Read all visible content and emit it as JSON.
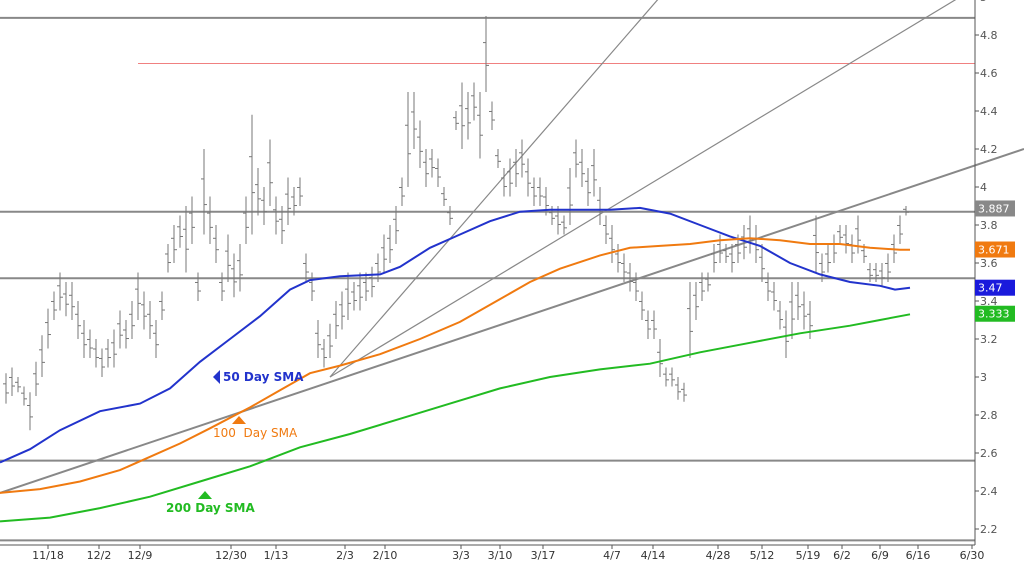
{
  "chart_data": {
    "type": "line",
    "title": "",
    "ylim": [
      2.1,
      5.0
    ],
    "y_ticks": [
      "2.2",
      "2.4",
      "2.6",
      "2.8",
      "3",
      "3.2",
      "3.4",
      "3.6",
      "3.8",
      "4",
      "4.2",
      "4.4",
      "4.6",
      "4.8",
      "5"
    ],
    "x_ticks": [
      "11/18",
      "12/2",
      "12/9",
      "12/30",
      "1/13",
      "2/3",
      "2/10",
      "3/3",
      "3/10",
      "3/17",
      "4/7",
      "4/14",
      "4/28",
      "5/12",
      "5/19",
      "6/2",
      "6/9",
      "6/16",
      "6/30"
    ],
    "grid": false,
    "horizontal_levels": [
      {
        "value": 4.89,
        "color": "#888888"
      },
      {
        "value": 3.87,
        "color": "#888888"
      },
      {
        "value": 3.52,
        "color": "#888888"
      },
      {
        "value": 2.56,
        "color": "#888888"
      },
      {
        "value": 2.14,
        "color": "#888888"
      },
      {
        "value": 4.65,
        "color": "#f08080",
        "from_x": 3
      }
    ],
    "trendlines": [
      {
        "x0": 0,
        "y0": 2.39,
        "x1": 1024,
        "y1": 4.2,
        "color": "#888888",
        "width": 2
      },
      {
        "x0": 330,
        "y0": 3.0,
        "x1": 660,
        "y1": 5.0,
        "color": "#888888",
        "width": 1.2
      },
      {
        "x0": 330,
        "y0": 3.0,
        "x1": 960,
        "y1": 5.0,
        "color": "#888888",
        "width": 1.2
      }
    ],
    "series": [
      {
        "name": "50 Day SMA",
        "color": "#2233cc",
        "points": [
          [
            0,
            2.55
          ],
          [
            30,
            2.62
          ],
          [
            60,
            2.72
          ],
          [
            100,
            2.82
          ],
          [
            140,
            2.86
          ],
          [
            170,
            2.94
          ],
          [
            200,
            3.08
          ],
          [
            230,
            3.2
          ],
          [
            260,
            3.32
          ],
          [
            290,
            3.46
          ],
          [
            310,
            3.51
          ],
          [
            340,
            3.53
          ],
          [
            380,
            3.54
          ],
          [
            400,
            3.58
          ],
          [
            430,
            3.68
          ],
          [
            460,
            3.75
          ],
          [
            490,
            3.82
          ],
          [
            520,
            3.87
          ],
          [
            550,
            3.88
          ],
          [
            580,
            3.88
          ],
          [
            610,
            3.88
          ],
          [
            640,
            3.89
          ],
          [
            670,
            3.86
          ],
          [
            700,
            3.8
          ],
          [
            730,
            3.74
          ],
          [
            760,
            3.69
          ],
          [
            790,
            3.6
          ],
          [
            820,
            3.54
          ],
          [
            850,
            3.5
          ],
          [
            880,
            3.48
          ],
          [
            895,
            3.46
          ],
          [
            910,
            3.47
          ]
        ]
      },
      {
        "name": "100  Day SMA",
        "color": "#f07a10",
        "points": [
          [
            0,
            2.39
          ],
          [
            40,
            2.41
          ],
          [
            80,
            2.45
          ],
          [
            120,
            2.51
          ],
          [
            150,
            2.58
          ],
          [
            180,
            2.65
          ],
          [
            210,
            2.73
          ],
          [
            250,
            2.84
          ],
          [
            280,
            2.93
          ],
          [
            310,
            3.02
          ],
          [
            340,
            3.06
          ],
          [
            380,
            3.12
          ],
          [
            420,
            3.2
          ],
          [
            460,
            3.29
          ],
          [
            500,
            3.41
          ],
          [
            530,
            3.5
          ],
          [
            560,
            3.57
          ],
          [
            600,
            3.64
          ],
          [
            630,
            3.68
          ],
          [
            660,
            3.69
          ],
          [
            690,
            3.7
          ],
          [
            720,
            3.72
          ],
          [
            750,
            3.73
          ],
          [
            780,
            3.72
          ],
          [
            810,
            3.7
          ],
          [
            840,
            3.7
          ],
          [
            870,
            3.68
          ],
          [
            900,
            3.67
          ],
          [
            910,
            3.67
          ]
        ]
      },
      {
        "name": "200 Day SMA",
        "color": "#22bb22",
        "points": [
          [
            0,
            2.24
          ],
          [
            50,
            2.26
          ],
          [
            100,
            2.31
          ],
          [
            150,
            2.37
          ],
          [
            200,
            2.45
          ],
          [
            250,
            2.53
          ],
          [
            300,
            2.63
          ],
          [
            350,
            2.7
          ],
          [
            400,
            2.78
          ],
          [
            450,
            2.86
          ],
          [
            500,
            2.94
          ],
          [
            550,
            3.0
          ],
          [
            600,
            3.04
          ],
          [
            650,
            3.07
          ],
          [
            700,
            3.13
          ],
          [
            750,
            3.18
          ],
          [
            800,
            3.23
          ],
          [
            850,
            3.27
          ],
          [
            880,
            3.3
          ],
          [
            910,
            3.33
          ]
        ]
      }
    ],
    "price_bars": [
      [
        6,
        2.86,
        3.02
      ],
      [
        12,
        2.9,
        3.05
      ],
      [
        18,
        2.92,
        3.0
      ],
      [
        24,
        2.85,
        2.95
      ],
      [
        30,
        2.72,
        2.92
      ],
      [
        36,
        2.9,
        3.08
      ],
      [
        42,
        3.0,
        3.22
      ],
      [
        48,
        3.15,
        3.36
      ],
      [
        54,
        3.3,
        3.45
      ],
      [
        60,
        3.35,
        3.55
      ],
      [
        66,
        3.32,
        3.5
      ],
      [
        72,
        3.3,
        3.5
      ],
      [
        78,
        3.2,
        3.4
      ],
      [
        84,
        3.1,
        3.3
      ],
      [
        90,
        3.1,
        3.25
      ],
      [
        96,
        3.05,
        3.2
      ],
      [
        102,
        3.0,
        3.15
      ],
      [
        108,
        3.05,
        3.2
      ],
      [
        114,
        3.05,
        3.25
      ],
      [
        120,
        3.15,
        3.35
      ],
      [
        126,
        3.15,
        3.3
      ],
      [
        132,
        3.2,
        3.4
      ],
      [
        138,
        3.3,
        3.55
      ],
      [
        144,
        3.25,
        3.45
      ],
      [
        150,
        3.2,
        3.4
      ],
      [
        156,
        3.1,
        3.3
      ],
      [
        162,
        3.3,
        3.45
      ],
      [
        168,
        3.55,
        3.7
      ],
      [
        174,
        3.6,
        3.8
      ],
      [
        180,
        3.68,
        3.85
      ],
      [
        186,
        3.55,
        3.9
      ],
      [
        192,
        3.7,
        3.95
      ],
      [
        198,
        3.4,
        3.55
      ],
      [
        204,
        3.75,
        4.2
      ],
      [
        210,
        3.7,
        3.95
      ],
      [
        216,
        3.6,
        3.8
      ],
      [
        222,
        3.4,
        3.55
      ],
      [
        228,
        3.5,
        3.75
      ],
      [
        234,
        3.42,
        3.65
      ],
      [
        240,
        3.45,
        3.7
      ],
      [
        246,
        3.7,
        3.95
      ],
      [
        252,
        3.75,
        4.38
      ],
      [
        258,
        3.85,
        4.1
      ],
      [
        264,
        3.8,
        4.0
      ],
      [
        270,
        3.9,
        4.25
      ],
      [
        276,
        3.75,
        3.95
      ],
      [
        282,
        3.7,
        3.9
      ],
      [
        288,
        3.8,
        4.05
      ],
      [
        294,
        3.85,
        4.0
      ],
      [
        300,
        3.9,
        4.05
      ],
      [
        306,
        3.5,
        3.65
      ],
      [
        312,
        3.4,
        3.55
      ],
      [
        318,
        3.1,
        3.3
      ],
      [
        324,
        3.05,
        3.2
      ],
      [
        330,
        3.1,
        3.28
      ],
      [
        336,
        3.2,
        3.4
      ],
      [
        342,
        3.25,
        3.45
      ],
      [
        348,
        3.3,
        3.55
      ],
      [
        354,
        3.35,
        3.5
      ],
      [
        360,
        3.35,
        3.55
      ],
      [
        366,
        3.4,
        3.55
      ],
      [
        372,
        3.42,
        3.58
      ],
      [
        378,
        3.5,
        3.65
      ],
      [
        384,
        3.55,
        3.75
      ],
      [
        390,
        3.6,
        3.8
      ],
      [
        396,
        3.7,
        3.9
      ],
      [
        402,
        3.9,
        4.05
      ],
      [
        408,
        4.0,
        4.5
      ],
      [
        414,
        4.2,
        4.5
      ],
      [
        420,
        4.1,
        4.35
      ],
      [
        426,
        4.0,
        4.2
      ],
      [
        432,
        4.05,
        4.2
      ],
      [
        438,
        4.0,
        4.15
      ],
      [
        444,
        3.9,
        4.0
      ],
      [
        450,
        3.8,
        3.9
      ],
      [
        456,
        4.3,
        4.4
      ],
      [
        462,
        4.2,
        4.55
      ],
      [
        468,
        4.25,
        4.5
      ],
      [
        474,
        4.35,
        4.55
      ],
      [
        480,
        4.15,
        4.5
      ],
      [
        486,
        4.5,
        4.9
      ],
      [
        492,
        4.3,
        4.45
      ],
      [
        498,
        4.1,
        4.2
      ],
      [
        504,
        3.95,
        4.1
      ],
      [
        510,
        3.95,
        4.15
      ],
      [
        516,
        4.0,
        4.2
      ],
      [
        522,
        4.05,
        4.25
      ],
      [
        528,
        3.95,
        4.15
      ],
      [
        534,
        3.9,
        4.05
      ],
      [
        540,
        3.9,
        4.05
      ],
      [
        546,
        3.85,
        4.0
      ],
      [
        552,
        3.8,
        3.9
      ],
      [
        558,
        3.75,
        3.9
      ],
      [
        564,
        3.75,
        3.85
      ],
      [
        570,
        3.8,
        4.1
      ],
      [
        576,
        4.05,
        4.25
      ],
      [
        582,
        4.0,
        4.2
      ],
      [
        588,
        3.9,
        4.1
      ],
      [
        594,
        3.95,
        4.2
      ],
      [
        600,
        3.8,
        4.0
      ],
      [
        606,
        3.7,
        3.85
      ],
      [
        612,
        3.6,
        3.8
      ],
      [
        618,
        3.55,
        3.7
      ],
      [
        624,
        3.5,
        3.65
      ],
      [
        630,
        3.45,
        3.6
      ],
      [
        636,
        3.4,
        3.55
      ],
      [
        642,
        3.3,
        3.45
      ],
      [
        648,
        3.2,
        3.35
      ],
      [
        654,
        3.2,
        3.35
      ],
      [
        660,
        3.0,
        3.2
      ],
      [
        666,
        2.95,
        3.05
      ],
      [
        672,
        2.95,
        3.05
      ],
      [
        678,
        2.88,
        3.0
      ],
      [
        684,
        2.87,
        2.97
      ],
      [
        690,
        3.1,
        3.5
      ],
      [
        696,
        3.3,
        3.5
      ],
      [
        702,
        3.4,
        3.55
      ],
      [
        708,
        3.45,
        3.55
      ],
      [
        714,
        3.55,
        3.7
      ],
      [
        720,
        3.6,
        3.75
      ],
      [
        726,
        3.6,
        3.7
      ],
      [
        732,
        3.55,
        3.7
      ],
      [
        738,
        3.6,
        3.75
      ],
      [
        744,
        3.62,
        3.8
      ],
      [
        750,
        3.65,
        3.85
      ],
      [
        756,
        3.6,
        3.8
      ],
      [
        762,
        3.5,
        3.7
      ],
      [
        768,
        3.4,
        3.55
      ],
      [
        774,
        3.35,
        3.5
      ],
      [
        780,
        3.25,
        3.4
      ],
      [
        786,
        3.1,
        3.35
      ],
      [
        792,
        3.2,
        3.5
      ],
      [
        798,
        3.3,
        3.5
      ],
      [
        804,
        3.25,
        3.45
      ],
      [
        810,
        3.2,
        3.4
      ],
      [
        816,
        3.55,
        3.85
      ],
      [
        822,
        3.5,
        3.65
      ],
      [
        828,
        3.55,
        3.7
      ],
      [
        834,
        3.6,
        3.75
      ],
      [
        840,
        3.7,
        3.8
      ],
      [
        846,
        3.65,
        3.8
      ],
      [
        852,
        3.6,
        3.75
      ],
      [
        858,
        3.65,
        3.85
      ],
      [
        864,
        3.6,
        3.7
      ],
      [
        870,
        3.5,
        3.6
      ],
      [
        876,
        3.5,
        3.6
      ],
      [
        882,
        3.48,
        3.6
      ],
      [
        888,
        3.5,
        3.65
      ],
      [
        894,
        3.6,
        3.75
      ],
      [
        900,
        3.7,
        3.85
      ],
      [
        906,
        3.85,
        3.9
      ]
    ],
    "price_tags": [
      {
        "value": 3.887,
        "label": "3.887",
        "bg": "#888888"
      },
      {
        "value": 3.671,
        "label": "3.671",
        "bg": "#f07a10"
      },
      {
        "value": 3.47,
        "label": "3.47",
        "bg": "#1a1adc"
      },
      {
        "value": 3.333,
        "label": "3.333",
        "bg": "#22bb22"
      }
    ],
    "annotations": [
      {
        "text": "50 Day SMA",
        "color": "#2233cc",
        "arrow": "left"
      },
      {
        "text": "100  Day SMA",
        "color": "#f07a10",
        "arrow": "up"
      },
      {
        "text": "200 Day SMA",
        "color": "#22bb22",
        "arrow": "up"
      }
    ]
  }
}
